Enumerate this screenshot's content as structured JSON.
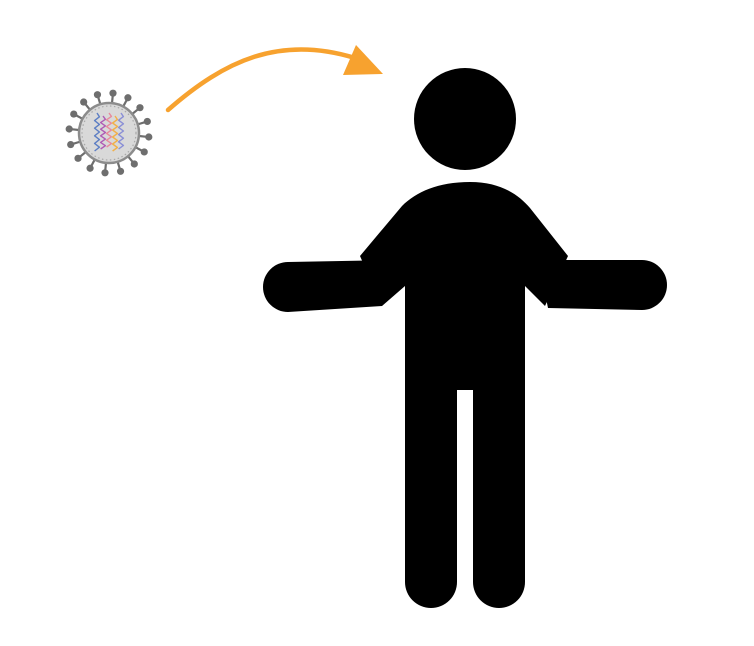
{
  "diagram": {
    "elements": [
      "virus",
      "transmission-arrow",
      "person"
    ]
  },
  "colors": {
    "arrow": "#F7A22F",
    "person": "#000000",
    "virus_envelope": "#D9D9D9",
    "virus_envelope_edge": "#8C8C8C",
    "virus_spikes": "#6E6E6E",
    "rna_strands": [
      "#5E7FC4",
      "#B05CB5",
      "#E88A9B",
      "#F1B04A",
      "#8A8FD6"
    ]
  }
}
